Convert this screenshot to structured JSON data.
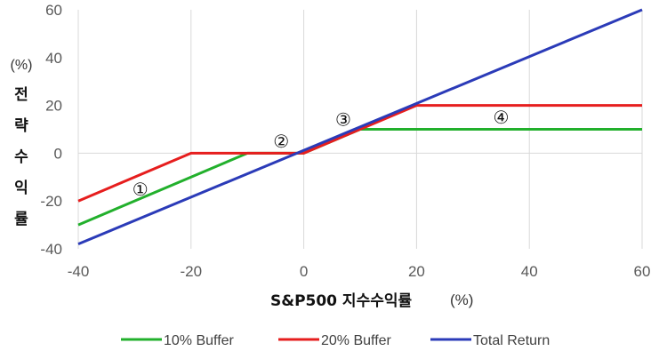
{
  "chart_data": {
    "type": "line",
    "xlabel": "S&P500 지수수익률",
    "xlabel_unit": "(%)",
    "ylabel": "전략수익률",
    "ylabel_unit": "(%)",
    "xlim": [
      -40,
      60
    ],
    "ylim": [
      -40,
      60
    ],
    "xticks": [
      -40,
      -20,
      0,
      20,
      40,
      60
    ],
    "yticks": [
      -40,
      -20,
      0,
      20,
      40,
      60
    ],
    "grid": "vertical",
    "legend_position": "bottom",
    "series": [
      {
        "name": "10% Buffer",
        "color": "#22b02c",
        "points": [
          [
            -40,
            -30
          ],
          [
            -10,
            0
          ],
          [
            0,
            0
          ],
          [
            10,
            10
          ],
          [
            60,
            10
          ]
        ]
      },
      {
        "name": "20% Buffer",
        "color": "#e61e1e",
        "points": [
          [
            -40,
            -20
          ],
          [
            -20,
            0
          ],
          [
            0,
            0
          ],
          [
            20,
            20
          ],
          [
            60,
            20
          ]
        ]
      },
      {
        "name": "Total Return",
        "color": "#2b3bb8",
        "points": [
          [
            -40,
            -38
          ],
          [
            60,
            60
          ]
        ]
      }
    ],
    "annotations": [
      {
        "text": "①",
        "x": -29,
        "y": -15
      },
      {
        "text": "②",
        "x": -4,
        "y": 5
      },
      {
        "text": "③",
        "x": 7,
        "y": 14
      },
      {
        "text": "④",
        "x": 35,
        "y": 15
      }
    ]
  }
}
